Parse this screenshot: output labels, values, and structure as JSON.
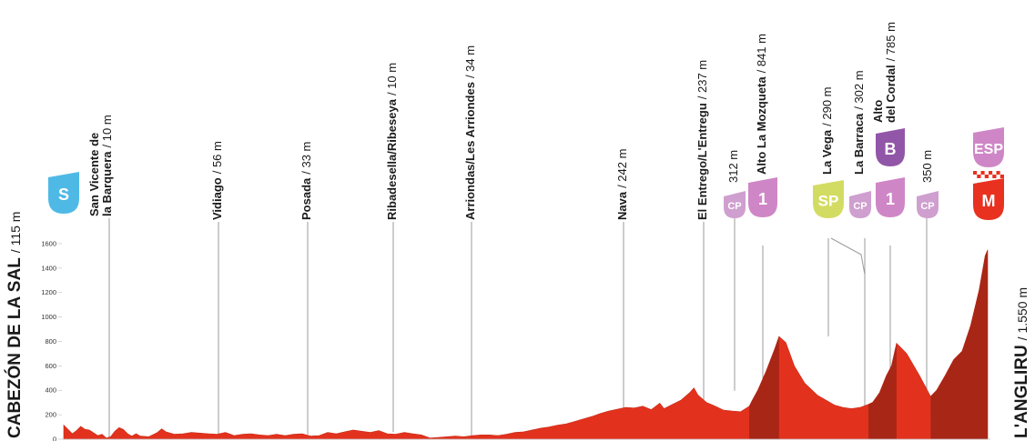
{
  "chart_data": {
    "type": "area",
    "title": "",
    "xlabel": "",
    "ylabel": "",
    "ylim": [
      0,
      1700
    ],
    "yticks": [
      0,
      200,
      400,
      600,
      800,
      1000,
      1200,
      1400,
      1600
    ],
    "start": {
      "name": "CABEZÓN DE LA SAL",
      "elev": "/ 115 m"
    },
    "finish": {
      "name": "L'ANGLIRU",
      "elev": "/ 1.550 m"
    },
    "locations": [
      {
        "id": "san-vicente",
        "lines": [
          "San Vicente de",
          "la Barquera"
        ],
        "elev": "/ 10 m"
      },
      {
        "id": "vidiago",
        "lines": [
          "Vidiago"
        ],
        "elev": "/ 56 m"
      },
      {
        "id": "posada",
        "lines": [
          "Posada"
        ],
        "elev": "/ 33 m"
      },
      {
        "id": "ribadesella",
        "lines": [
          "Ribadesella/Ribeseya"
        ],
        "elev": "/ 10 m"
      },
      {
        "id": "arriondas",
        "lines": [
          "Arriondas/Les Arriondes"
        ],
        "elev": "/ 34 m"
      },
      {
        "id": "nava",
        "lines": [
          "Nava"
        ],
        "elev": "/ 242 m"
      },
      {
        "id": "el-entrego",
        "lines": [
          "El Entrego/L'Entregu"
        ],
        "elev": "/ 237 m"
      },
      {
        "id": "cp-312",
        "lines": [],
        "elev": "312 m"
      },
      {
        "id": "mozqueta",
        "lines": [
          "Alto La Mozqueta"
        ],
        "elev": "/ 841 m"
      },
      {
        "id": "la-vega",
        "lines": [
          "La Vega"
        ],
        "elev": "/ 290 m"
      },
      {
        "id": "la-barraca",
        "lines": [
          "La Barraca"
        ],
        "elev": "/ 302 m"
      },
      {
        "id": "cordal",
        "lines": [
          "Alto",
          "del Cordal"
        ],
        "elev": "/ 785 m"
      },
      {
        "id": "cp-350",
        "lines": [],
        "elev": "350 m"
      }
    ],
    "badges": [
      {
        "id": "start",
        "text": "S",
        "color": "#4fb9e6"
      },
      {
        "id": "cp1",
        "text": "CP",
        "color": "#cf9fcf"
      },
      {
        "id": "kom1",
        "text": "1",
        "color": "#cf86c6"
      },
      {
        "id": "sprint",
        "text": "SP",
        "color": "#d3dc62"
      },
      {
        "id": "cp2",
        "text": "CP",
        "color": "#cf9fcf"
      },
      {
        "id": "kom2",
        "text": "1",
        "color": "#cf86c6"
      },
      {
        "id": "bonus",
        "text": "B",
        "color": "#9256a8"
      },
      {
        "id": "cp3",
        "text": "CP",
        "color": "#cf9fcf"
      },
      {
        "id": "esp",
        "text": "ESP",
        "color": "#cf86c6"
      },
      {
        "id": "meta",
        "text": "M",
        "color": "#e8311f"
      }
    ],
    "colors": {
      "fill": "#e2321d",
      "climb": "#a82616",
      "fill_edge": "#c92a18",
      "line": "#9b9b9b"
    },
    "profile": [
      [
        0,
        115
      ],
      [
        5,
        80
      ],
      [
        10,
        45
      ],
      [
        15,
        70
      ],
      [
        20,
        105
      ],
      [
        25,
        80
      ],
      [
        30,
        75
      ],
      [
        40,
        30
      ],
      [
        45,
        40
      ],
      [
        50,
        10
      ],
      [
        55,
        20
      ],
      [
        60,
        65
      ],
      [
        65,
        95
      ],
      [
        70,
        80
      ],
      [
        75,
        45
      ],
      [
        80,
        25
      ],
      [
        85,
        45
      ],
      [
        90,
        25
      ],
      [
        100,
        20
      ],
      [
        110,
        55
      ],
      [
        115,
        85
      ],
      [
        120,
        60
      ],
      [
        130,
        40
      ],
      [
        140,
        45
      ],
      [
        150,
        55
      ],
      [
        160,
        50
      ],
      [
        170,
        45
      ],
      [
        180,
        40
      ],
      [
        190,
        55
      ],
      [
        200,
        30
      ],
      [
        210,
        40
      ],
      [
        220,
        45
      ],
      [
        230,
        35
      ],
      [
        240,
        30
      ],
      [
        250,
        40
      ],
      [
        260,
        30
      ],
      [
        270,
        40
      ],
      [
        280,
        45
      ],
      [
        290,
        25
      ],
      [
        300,
        30
      ],
      [
        310,
        55
      ],
      [
        320,
        45
      ],
      [
        330,
        60
      ],
      [
        340,
        75
      ],
      [
        350,
        65
      ],
      [
        360,
        55
      ],
      [
        370,
        70
      ],
      [
        380,
        45
      ],
      [
        390,
        40
      ],
      [
        400,
        55
      ],
      [
        410,
        45
      ],
      [
        420,
        35
      ],
      [
        430,
        10
      ],
      [
        440,
        15
      ],
      [
        450,
        20
      ],
      [
        460,
        25
      ],
      [
        470,
        20
      ],
      [
        480,
        30
      ],
      [
        490,
        35
      ],
      [
        500,
        35
      ],
      [
        510,
        30
      ],
      [
        520,
        40
      ],
      [
        530,
        55
      ],
      [
        540,
        60
      ],
      [
        550,
        75
      ],
      [
        560,
        90
      ],
      [
        570,
        100
      ],
      [
        580,
        115
      ],
      [
        590,
        125
      ],
      [
        600,
        145
      ],
      [
        610,
        165
      ],
      [
        620,
        185
      ],
      [
        630,
        210
      ],
      [
        640,
        230
      ],
      [
        650,
        245
      ],
      [
        660,
        260
      ],
      [
        670,
        255
      ],
      [
        680,
        270
      ],
      [
        690,
        242
      ],
      [
        700,
        295
      ],
      [
        705,
        250
      ],
      [
        715,
        285
      ],
      [
        725,
        320
      ],
      [
        735,
        380
      ],
      [
        740,
        420
      ],
      [
        745,
        360
      ],
      [
        755,
        300
      ],
      [
        765,
        270
      ],
      [
        775,
        237
      ],
      [
        785,
        230
      ],
      [
        795,
        225
      ],
      [
        805,
        270
      ],
      [
        808,
        312
      ],
      [
        815,
        400
      ],
      [
        825,
        560
      ],
      [
        835,
        740
      ],
      [
        840,
        841
      ],
      [
        848,
        790
      ],
      [
        858,
        600
      ],
      [
        870,
        460
      ],
      [
        885,
        360
      ],
      [
        895,
        320
      ],
      [
        905,
        280
      ],
      [
        915,
        260
      ],
      [
        925,
        250
      ],
      [
        935,
        260
      ],
      [
        945,
        285
      ],
      [
        950,
        302
      ],
      [
        958,
        380
      ],
      [
        966,
        520
      ],
      [
        972,
        600
      ],
      [
        978,
        785
      ],
      [
        990,
        700
      ],
      [
        1005,
        520
      ],
      [
        1018,
        350
      ],
      [
        1025,
        400
      ],
      [
        1035,
        520
      ],
      [
        1045,
        650
      ],
      [
        1055,
        720
      ],
      [
        1065,
        930
      ],
      [
        1075,
        1220
      ],
      [
        1082,
        1500
      ],
      [
        1085,
        1550
      ]
    ],
    "climb_segments": [
      [
        805,
        840
      ],
      [
        945,
        978
      ],
      [
        1018,
        1085
      ]
    ]
  }
}
